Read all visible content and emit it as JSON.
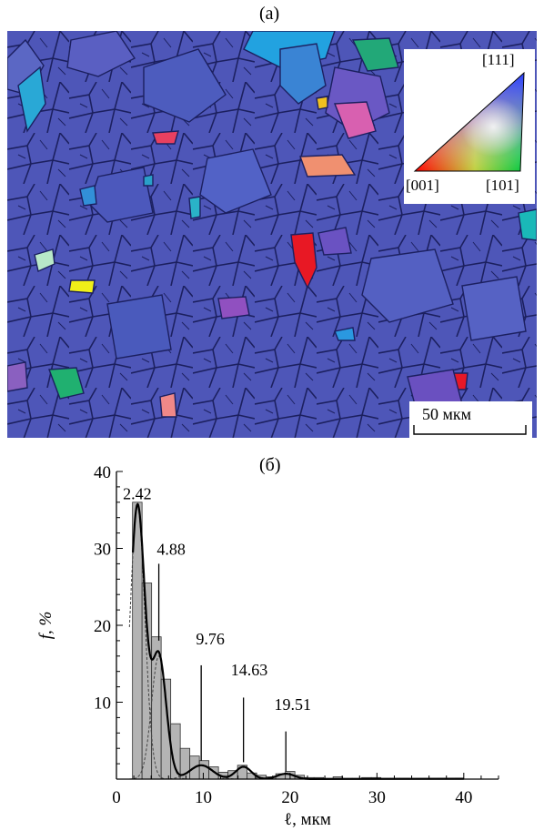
{
  "panel_a": {
    "label": "(a)",
    "legend": {
      "top": "[111]",
      "left": "[001]",
      "right": "[101]"
    },
    "scale_bar": "50 мкм"
  },
  "panel_b": {
    "label": "(б)"
  },
  "chart_data": {
    "type": "bar",
    "xlabel": "ℓ, мкм",
    "ylabel": "f, %",
    "xlim": [
      0,
      44
    ],
    "ylim": [
      0,
      40
    ],
    "xticks": [
      0,
      10,
      20,
      30,
      40
    ],
    "yticks": [
      10,
      20,
      30,
      40
    ],
    "bin_width": 1.1,
    "x": [
      2.4,
      3.5,
      4.6,
      5.7,
      6.8,
      7.9,
      9.0,
      10.1,
      11.2,
      12.3,
      13.4,
      14.5,
      15.6,
      16.7,
      17.8,
      18.9,
      20.0,
      21.1,
      22.2,
      23.3,
      24.4,
      25.5,
      26.6,
      27.7,
      28.8,
      29.9,
      31.0,
      32.1,
      33.2
    ],
    "values": [
      36,
      25.5,
      18.5,
      13,
      7.2,
      4,
      3,
      2.4,
      1.6,
      0.9,
      1.1,
      1.8,
      0.8,
      0.5,
      0.3,
      0.7,
      1.0,
      0.5,
      0.2,
      0.2,
      0.1,
      0.3,
      0.1,
      0.1,
      0.2,
      0.2,
      0.1,
      0.1,
      0.1
    ],
    "fit_peaks": [
      {
        "center": 2.42,
        "amplitude": 35.5,
        "sigma": 0.85
      },
      {
        "center": 4.88,
        "amplitude": 16.0,
        "sigma": 0.85
      },
      {
        "center": 9.76,
        "amplitude": 1.8,
        "sigma": 1.3
      },
      {
        "center": 14.63,
        "amplitude": 1.6,
        "sigma": 0.9
      },
      {
        "center": 19.51,
        "amplitude": 0.7,
        "sigma": 1.0
      }
    ],
    "annotations": [
      "2.42",
      "4.88",
      "9.76",
      "14.63",
      "19.51"
    ]
  }
}
